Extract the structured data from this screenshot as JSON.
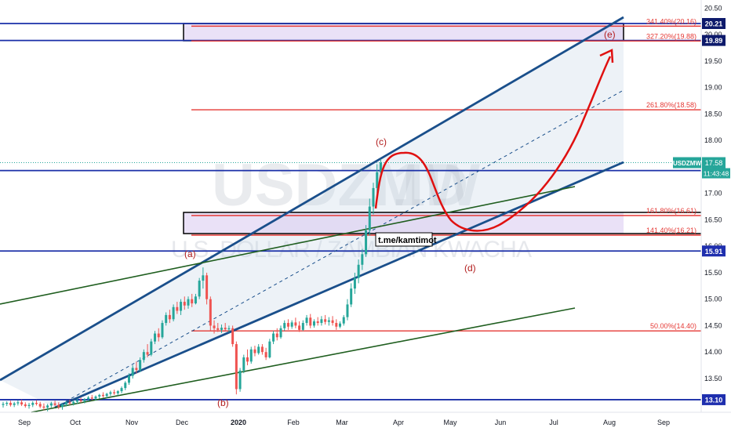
{
  "chart_data": {
    "type": "candlestick",
    "symbol": "USDZMW",
    "interval": "1D",
    "description": "U.S. DOLLAR / ZAMBIAN KWACHA",
    "last_price": "17.58",
    "countdown": "11:43:48",
    "x_ticks": [
      "Sep",
      "Oct",
      "Nov",
      "Dec",
      "2020",
      "Feb",
      "Mar",
      "Apr",
      "May",
      "Jun",
      "Jul",
      "Aug",
      "Sep"
    ],
    "y_ticks": [
      "13.50",
      "14.00",
      "14.50",
      "15.00",
      "15.50",
      "16.00",
      "16.50",
      "17.00",
      "17.50",
      "18.00",
      "18.50",
      "19.00",
      "19.50",
      "20.00",
      "20.50"
    ],
    "ylim": [
      12.8,
      20.6
    ],
    "price_badges": [
      {
        "label": "20.21",
        "value": 20.21,
        "style": "dark"
      },
      {
        "label": "19.89",
        "value": 19.89,
        "style": "dark"
      },
      {
        "label": "USDZMW",
        "value": 17.58,
        "style": "teal"
      },
      {
        "label": "17.43",
        "value": 17.43,
        "style": "blue"
      },
      {
        "label": "15.91",
        "value": 15.91,
        "style": "blue"
      },
      {
        "label": "13.10",
        "value": 13.1,
        "style": "blue"
      }
    ],
    "fib_levels": [
      {
        "label": "341.40%(20.16)",
        "value": 20.16
      },
      {
        "label": "327.20%(19.88)",
        "value": 19.88
      },
      {
        "label": "261.80%(18.58)",
        "value": 18.58
      },
      {
        "label": "161.80%(16.61)",
        "value": 16.61
      },
      {
        "label": "141.40%(16.21)",
        "value": 16.21
      },
      {
        "label": "50.00%(14.40)",
        "value": 14.4
      }
    ],
    "wave_labels": [
      "(a)",
      "(b)",
      "(c)",
      "(d)",
      "(e)"
    ],
    "annotation": "t.me/kamtimot",
    "candles": [
      {
        "o": 13.0,
        "h": 13.06,
        "l": 12.95,
        "c": 13.02
      },
      {
        "o": 13.02,
        "h": 13.07,
        "l": 12.98,
        "c": 13.04
      },
      {
        "o": 13.04,
        "h": 13.08,
        "l": 12.97,
        "c": 13.0
      },
      {
        "o": 13.0,
        "h": 13.06,
        "l": 12.96,
        "c": 13.03
      },
      {
        "o": 13.03,
        "h": 13.09,
        "l": 12.99,
        "c": 13.05
      },
      {
        "o": 13.05,
        "h": 13.1,
        "l": 12.98,
        "c": 13.01
      },
      {
        "o": 13.01,
        "h": 13.05,
        "l": 12.95,
        "c": 12.98
      },
      {
        "o": 12.98,
        "h": 13.04,
        "l": 12.93,
        "c": 13.0
      },
      {
        "o": 13.0,
        "h": 13.07,
        "l": 12.96,
        "c": 13.04
      },
      {
        "o": 13.04,
        "h": 13.09,
        "l": 12.99,
        "c": 13.02
      },
      {
        "o": 13.02,
        "h": 13.06,
        "l": 12.94,
        "c": 12.97
      },
      {
        "o": 12.97,
        "h": 13.03,
        "l": 12.9,
        "c": 12.95
      },
      {
        "o": 12.95,
        "h": 13.02,
        "l": 12.88,
        "c": 12.99
      },
      {
        "o": 12.99,
        "h": 13.06,
        "l": 12.95,
        "c": 13.03
      },
      {
        "o": 13.03,
        "h": 13.08,
        "l": 12.98,
        "c": 13.0
      },
      {
        "o": 13.0,
        "h": 13.05,
        "l": 12.92,
        "c": 12.96
      },
      {
        "o": 12.96,
        "h": 13.03,
        "l": 12.91,
        "c": 13.01
      },
      {
        "o": 13.01,
        "h": 13.07,
        "l": 12.97,
        "c": 13.05
      },
      {
        "o": 13.05,
        "h": 13.1,
        "l": 13.0,
        "c": 13.03
      },
      {
        "o": 13.03,
        "h": 13.08,
        "l": 12.99,
        "c": 13.06
      },
      {
        "o": 13.06,
        "h": 13.12,
        "l": 13.02,
        "c": 13.09
      },
      {
        "o": 13.09,
        "h": 13.14,
        "l": 13.04,
        "c": 13.07
      },
      {
        "o": 13.07,
        "h": 13.13,
        "l": 13.03,
        "c": 13.11
      },
      {
        "o": 13.11,
        "h": 13.17,
        "l": 13.07,
        "c": 13.14
      },
      {
        "o": 13.14,
        "h": 13.19,
        "l": 13.09,
        "c": 13.12
      },
      {
        "o": 13.12,
        "h": 13.18,
        "l": 13.08,
        "c": 13.16
      },
      {
        "o": 13.16,
        "h": 13.21,
        "l": 13.12,
        "c": 13.19
      },
      {
        "o": 13.19,
        "h": 13.24,
        "l": 13.14,
        "c": 13.17
      },
      {
        "o": 13.17,
        "h": 13.23,
        "l": 13.13,
        "c": 13.21
      },
      {
        "o": 13.21,
        "h": 13.27,
        "l": 13.17,
        "c": 13.24
      },
      {
        "o": 13.24,
        "h": 13.29,
        "l": 13.19,
        "c": 13.22
      },
      {
        "o": 13.22,
        "h": 13.28,
        "l": 13.18,
        "c": 13.26
      },
      {
        "o": 13.26,
        "h": 13.35,
        "l": 13.22,
        "c": 13.32
      },
      {
        "o": 13.32,
        "h": 13.45,
        "l": 13.28,
        "c": 13.42
      },
      {
        "o": 13.42,
        "h": 13.6,
        "l": 13.38,
        "c": 13.55
      },
      {
        "o": 13.55,
        "h": 13.75,
        "l": 13.5,
        "c": 13.7
      },
      {
        "o": 13.7,
        "h": 13.82,
        "l": 13.6,
        "c": 13.66
      },
      {
        "o": 13.66,
        "h": 13.9,
        "l": 13.62,
        "c": 13.85
      },
      {
        "o": 13.85,
        "h": 14.05,
        "l": 13.8,
        "c": 14.0
      },
      {
        "o": 14.0,
        "h": 14.15,
        "l": 13.9,
        "c": 13.95
      },
      {
        "o": 13.95,
        "h": 14.25,
        "l": 13.92,
        "c": 14.2
      },
      {
        "o": 14.2,
        "h": 14.4,
        "l": 14.15,
        "c": 14.35
      },
      {
        "o": 14.35,
        "h": 14.45,
        "l": 14.2,
        "c": 14.28
      },
      {
        "o": 14.28,
        "h": 14.6,
        "l": 14.25,
        "c": 14.55
      },
      {
        "o": 14.55,
        "h": 14.75,
        "l": 14.5,
        "c": 14.7
      },
      {
        "o": 14.7,
        "h": 14.8,
        "l": 14.55,
        "c": 14.62
      },
      {
        "o": 14.62,
        "h": 14.9,
        "l": 14.58,
        "c": 14.85
      },
      {
        "o": 14.85,
        "h": 14.95,
        "l": 14.72,
        "c": 14.78
      },
      {
        "o": 14.78,
        "h": 15.0,
        "l": 14.7,
        "c": 14.95
      },
      {
        "o": 14.95,
        "h": 15.05,
        "l": 14.8,
        "c": 14.88
      },
      {
        "o": 14.88,
        "h": 15.05,
        "l": 14.82,
        "c": 15.0
      },
      {
        "o": 15.0,
        "h": 15.1,
        "l": 14.85,
        "c": 14.92
      },
      {
        "o": 14.92,
        "h": 15.1,
        "l": 14.9,
        "c": 15.05
      },
      {
        "o": 15.05,
        "h": 15.4,
        "l": 15.0,
        "c": 15.35
      },
      {
        "o": 15.35,
        "h": 15.6,
        "l": 15.2,
        "c": 15.45
      },
      {
        "o": 15.45,
        "h": 15.5,
        "l": 14.9,
        "c": 15.0
      },
      {
        "o": 15.0,
        "h": 15.05,
        "l": 14.4,
        "c": 14.5
      },
      {
        "o": 14.5,
        "h": 14.6,
        "l": 14.35,
        "c": 14.45
      },
      {
        "o": 14.45,
        "h": 14.55,
        "l": 14.38,
        "c": 14.42
      },
      {
        "o": 14.42,
        "h": 14.52,
        "l": 14.36,
        "c": 14.46
      },
      {
        "o": 14.46,
        "h": 14.55,
        "l": 14.4,
        "c": 14.43
      },
      {
        "o": 14.43,
        "h": 14.5,
        "l": 14.37,
        "c": 14.45
      },
      {
        "o": 14.45,
        "h": 14.5,
        "l": 14.1,
        "c": 14.15
      },
      {
        "o": 14.15,
        "h": 14.2,
        "l": 13.2,
        "c": 13.3
      },
      {
        "o": 13.3,
        "h": 13.7,
        "l": 13.25,
        "c": 13.65
      },
      {
        "o": 13.65,
        "h": 13.95,
        "l": 13.6,
        "c": 13.9
      },
      {
        "o": 13.9,
        "h": 14.05,
        "l": 13.75,
        "c": 13.82
      },
      {
        "o": 13.82,
        "h": 14.1,
        "l": 13.78,
        "c": 14.05
      },
      {
        "o": 14.05,
        "h": 14.12,
        "l": 13.92,
        "c": 13.98
      },
      {
        "o": 13.98,
        "h": 14.15,
        "l": 13.95,
        "c": 14.1
      },
      {
        "o": 14.1,
        "h": 14.15,
        "l": 13.95,
        "c": 14.0
      },
      {
        "o": 14.0,
        "h": 14.08,
        "l": 13.85,
        "c": 13.9
      },
      {
        "o": 13.9,
        "h": 14.25,
        "l": 13.88,
        "c": 14.2
      },
      {
        "o": 14.2,
        "h": 14.4,
        "l": 14.15,
        "c": 14.35
      },
      {
        "o": 14.35,
        "h": 14.45,
        "l": 14.22,
        "c": 14.28
      },
      {
        "o": 14.28,
        "h": 14.5,
        "l": 14.25,
        "c": 14.45
      },
      {
        "o": 14.45,
        "h": 14.6,
        "l": 14.4,
        "c": 14.55
      },
      {
        "o": 14.55,
        "h": 14.62,
        "l": 14.42,
        "c": 14.48
      },
      {
        "o": 14.48,
        "h": 14.6,
        "l": 14.44,
        "c": 14.56
      },
      {
        "o": 14.56,
        "h": 14.65,
        "l": 14.45,
        "c": 14.5
      },
      {
        "o": 14.5,
        "h": 14.58,
        "l": 14.38,
        "c": 14.42
      },
      {
        "o": 14.42,
        "h": 14.6,
        "l": 14.4,
        "c": 14.55
      },
      {
        "o": 14.55,
        "h": 14.7,
        "l": 14.5,
        "c": 14.65
      },
      {
        "o": 14.65,
        "h": 14.72,
        "l": 14.45,
        "c": 14.5
      },
      {
        "o": 14.5,
        "h": 14.62,
        "l": 14.46,
        "c": 14.58
      },
      {
        "o": 14.58,
        "h": 14.66,
        "l": 14.5,
        "c": 14.55
      },
      {
        "o": 14.55,
        "h": 14.68,
        "l": 14.5,
        "c": 14.62
      },
      {
        "o": 14.62,
        "h": 14.7,
        "l": 14.52,
        "c": 14.57
      },
      {
        "o": 14.57,
        "h": 14.66,
        "l": 14.5,
        "c": 14.6
      },
      {
        "o": 14.6,
        "h": 14.68,
        "l": 14.5,
        "c": 14.55
      },
      {
        "o": 14.55,
        "h": 14.62,
        "l": 14.42,
        "c": 14.48
      },
      {
        "o": 14.48,
        "h": 14.58,
        "l": 14.45,
        "c": 14.54
      },
      {
        "o": 14.54,
        "h": 14.7,
        "l": 14.5,
        "c": 14.66
      },
      {
        "o": 14.66,
        "h": 15.0,
        "l": 14.6,
        "c": 14.9
      },
      {
        "o": 14.9,
        "h": 15.3,
        "l": 14.85,
        "c": 15.2
      },
      {
        "o": 15.2,
        "h": 15.5,
        "l": 15.1,
        "c": 15.4
      },
      {
        "o": 15.4,
        "h": 15.75,
        "l": 15.3,
        "c": 15.65
      },
      {
        "o": 15.65,
        "h": 15.95,
        "l": 15.55,
        "c": 15.85
      },
      {
        "o": 15.85,
        "h": 16.4,
        "l": 15.8,
        "c": 16.3
      },
      {
        "o": 16.3,
        "h": 16.9,
        "l": 16.2,
        "c": 16.75
      },
      {
        "o": 16.75,
        "h": 17.2,
        "l": 16.6,
        "c": 17.1
      },
      {
        "o": 17.1,
        "h": 17.55,
        "l": 17.0,
        "c": 17.4
      },
      {
        "o": 17.4,
        "h": 17.65,
        "l": 17.3,
        "c": 17.58
      }
    ]
  }
}
